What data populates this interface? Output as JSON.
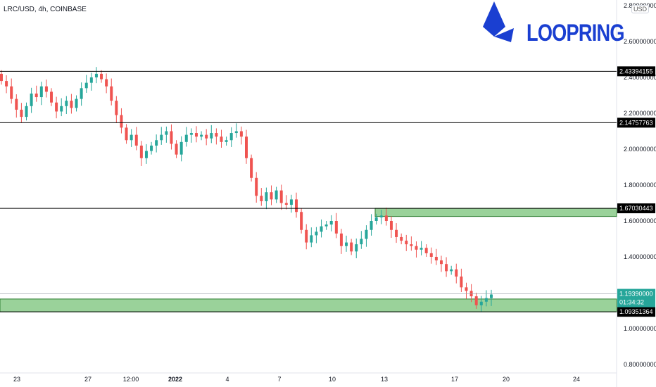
{
  "header": {
    "symbol": "LRC/USD, 4h, COINBASE",
    "currency": "USD"
  },
  "logo": {
    "text": "LOOPRING",
    "color": "#1a3fd1"
  },
  "colors": {
    "up": "#26a69a",
    "down": "#ef5350",
    "zone_fill": "#9ad29a",
    "zone_border": "#2e7d32",
    "line": "#000000",
    "label_bg": "#000000",
    "price_label_bg": "#26a69a"
  },
  "chart_data": {
    "type": "candlestick",
    "title": "LRC/USD, 4h, COINBASE",
    "y_axis": {
      "range": [
        0.76,
        2.83
      ],
      "ticks": [
        "2.80000000",
        "2.60000000",
        "2.40000000",
        "2.20000000",
        "2.00000000",
        "1.80000000",
        "1.60000000",
        "1.40000000",
        "1.00000000",
        "0.80000000"
      ]
    },
    "x_axis": {
      "ticks": [
        "23",
        "27",
        "12:00",
        "2022",
        "4",
        "7",
        "10",
        "13",
        "17",
        "20",
        "24"
      ]
    },
    "horizontal_lines": [
      {
        "label": "2.43394155",
        "value": 2.43394155
      },
      {
        "label": "2.14757763",
        "value": 2.14757763
      },
      {
        "label": "1.67030443",
        "value": 1.67030443
      },
      {
        "label": "1.09351364",
        "value": 1.09351364
      }
    ],
    "zones": [
      {
        "from": 1.625,
        "to": 1.67030443
      },
      {
        "from": 1.09351364,
        "to": 1.165
      }
    ],
    "current_price": {
      "value": "1.19390000",
      "countdown": "01:34:32",
      "level": 1.1939
    },
    "trend_path_close": [
      2.38,
      2.35,
      2.28,
      2.22,
      2.18,
      2.24,
      2.31,
      2.29,
      2.35,
      2.32,
      2.26,
      2.21,
      2.24,
      2.27,
      2.23,
      2.28,
      2.34,
      2.37,
      2.4,
      2.42,
      2.39,
      2.35,
      2.27,
      2.19,
      2.12,
      2.05,
      2.08,
      2.02,
      1.95,
      1.99,
      2.02,
      2.05,
      2.08,
      2.1,
      2.03,
      1.97,
      2.04,
      2.08,
      2.09,
      2.07,
      2.08,
      2.06,
      2.09,
      2.07,
      2.04,
      2.05,
      2.09,
      2.1,
      2.07,
      1.95,
      1.84,
      1.74,
      1.71,
      1.76,
      1.72,
      1.77,
      1.7,
      1.69,
      1.72,
      1.65,
      1.55,
      1.48,
      1.52,
      1.54,
      1.57,
      1.58,
      1.6,
      1.53,
      1.46,
      1.48,
      1.43,
      1.47,
      1.5,
      1.55,
      1.6,
      1.62,
      1.63,
      1.6,
      1.55,
      1.51,
      1.49,
      1.47,
      1.46,
      1.44,
      1.45,
      1.42,
      1.4,
      1.38,
      1.36,
      1.32,
      1.33,
      1.29,
      1.23,
      1.21,
      1.18,
      1.13,
      1.15,
      1.17,
      1.19
    ]
  }
}
